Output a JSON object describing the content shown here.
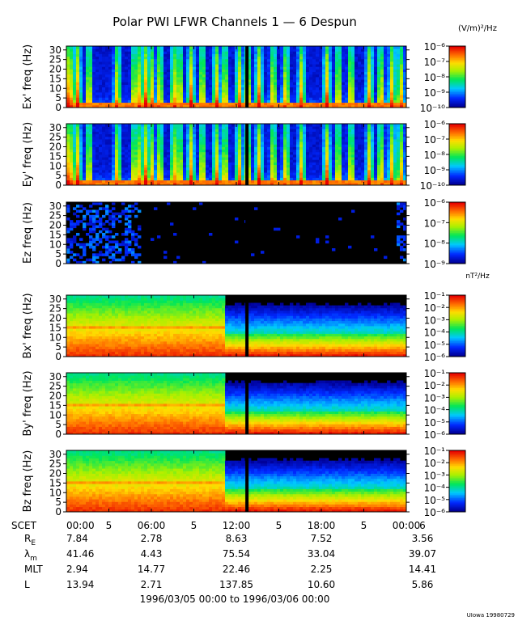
{
  "title": "Polar PWI LFWR Channels 1 — 6 Despun",
  "electric_units": "(V/m)²/Hz",
  "magnetic_units": "nT²/Hz",
  "credit": "UIowa 19980729",
  "date_range": "1996/03/05 00:00 to 1996/03/06 00:00",
  "time_axis": {
    "row_label": "SCET",
    "start_label": "00:00",
    "tick_labels": [
      "00:00",
      "5",
      "06:00",
      "5",
      "12:00",
      "5",
      "18:00",
      "5",
      "00:00",
      "6"
    ],
    "range_hours": [
      0,
      24
    ]
  },
  "ephemeris": {
    "columns_hours": [
      0,
      6,
      12,
      18,
      24
    ],
    "rows": [
      {
        "name": "R",
        "sub": "E",
        "values": [
          "7.84",
          "2.78",
          "8.63",
          "7.52",
          "3.56"
        ]
      },
      {
        "name": "λ",
        "sub": "m",
        "values": [
          "41.46",
          "4.43",
          "75.54",
          "33.04",
          "39.07"
        ]
      },
      {
        "name": "MLT",
        "sub": "",
        "values": [
          "2.94",
          "14.77",
          "22.46",
          "2.25",
          "14.41"
        ]
      },
      {
        "name": "L",
        "sub": "",
        "values": [
          "13.94",
          "2.71",
          "137.85",
          "10.60",
          "5.86"
        ]
      }
    ]
  },
  "chart_data": [
    {
      "type": "heatmap",
      "channel": "Ex'",
      "ylabel": "Ex' freq (Hz)",
      "ylim": [
        0,
        32
      ],
      "yticks": [
        0,
        5,
        10,
        15,
        20,
        25,
        30
      ],
      "xlim_hours": [
        0,
        24
      ],
      "colorbar": {
        "ticks": [
          {
            "exp": -6,
            "label": "10⁻⁶"
          },
          {
            "exp": -7,
            "label": "10⁻⁷"
          },
          {
            "exp": -8,
            "label": "10⁻⁸"
          },
          {
            "exp": -9,
            "label": "10⁻⁹"
          },
          {
            "exp": -10,
            "label": "10⁻¹⁰"
          }
        ]
      },
      "features": {
        "style": "bursts",
        "bursts_hours": [
          0.1,
          0.4,
          0.8,
          1.6,
          3.6,
          4.8,
          5.2,
          5.6,
          6.0,
          6.6,
          7.6,
          8.0,
          8.8,
          9.6,
          10.6,
          11.2,
          12.2,
          12.8,
          13.6,
          14.6,
          15.5,
          16.6,
          18.4,
          19.2,
          20.1,
          21.4,
          22.2,
          23.0,
          23.6
        ]
      }
    },
    {
      "type": "heatmap",
      "channel": "Ey'",
      "ylabel": "Ey' freq (Hz)",
      "ylim": [
        0,
        32
      ],
      "yticks": [
        0,
        5,
        10,
        15,
        20,
        25,
        30
      ],
      "xlim_hours": [
        0,
        24
      ],
      "colorbar": {
        "ticks": [
          {
            "exp": -6,
            "label": "10⁻⁶"
          },
          {
            "exp": -7,
            "label": "10⁻⁷"
          },
          {
            "exp": -8,
            "label": "10⁻⁸"
          },
          {
            "exp": -9,
            "label": "10⁻⁹"
          },
          {
            "exp": -10,
            "label": "10⁻¹⁰"
          }
        ]
      },
      "features": {
        "style": "bursts",
        "bursts_hours": [
          0.1,
          0.4,
          0.8,
          1.6,
          3.6,
          4.8,
          5.2,
          5.6,
          6.0,
          6.6,
          7.6,
          8.0,
          8.8,
          9.6,
          10.6,
          11.2,
          12.2,
          12.8,
          13.6,
          14.6,
          15.5,
          16.6,
          18.4,
          19.2,
          20.1,
          21.4,
          22.2,
          23.0,
          23.6
        ]
      }
    },
    {
      "type": "heatmap",
      "channel": "Ez",
      "ylabel": "Ez freq (Hz)",
      "ylim": [
        0,
        32
      ],
      "yticks": [
        0,
        5,
        10,
        15,
        20,
        25,
        30
      ],
      "xlim_hours": [
        0,
        24
      ],
      "colorbar": {
        "ticks": [
          {
            "exp": -6,
            "label": "10⁻⁶"
          },
          {
            "exp": -7,
            "label": "10⁻⁷"
          },
          {
            "exp": -8,
            "label": "10⁻⁸"
          },
          {
            "exp": -9,
            "label": "10⁻⁹"
          }
        ]
      },
      "features": {
        "style": "noise",
        "noise_hours": [
          0,
          5.2
        ],
        "late_noise_hours": [
          23.3,
          24
        ]
      }
    },
    {
      "type": "heatmap",
      "channel": "Bx'",
      "ylabel": "Bx' freq (Hz)",
      "ylim": [
        0,
        32
      ],
      "yticks": [
        0,
        5,
        10,
        15,
        20,
        25,
        30
      ],
      "xlim_hours": [
        0,
        24
      ],
      "colorbar": {
        "ticks": [
          {
            "exp": -1,
            "label": "10⁻¹"
          },
          {
            "exp": -2,
            "label": "10⁻²"
          },
          {
            "exp": -3,
            "label": "10⁻³"
          },
          {
            "exp": -4,
            "label": "10⁻⁴"
          },
          {
            "exp": -5,
            "label": "10⁻⁵"
          },
          {
            "exp": -6,
            "label": "10⁻⁶"
          }
        ]
      },
      "features": {
        "style": "magnetic",
        "step_hour": 11.3,
        "band_hz": [
          14.5,
          16.5
        ]
      }
    },
    {
      "type": "heatmap",
      "channel": "By'",
      "ylabel": "By' freq (Hz)",
      "ylim": [
        0,
        32
      ],
      "yticks": [
        0,
        5,
        10,
        15,
        20,
        25,
        30
      ],
      "xlim_hours": [
        0,
        24
      ],
      "colorbar": {
        "ticks": [
          {
            "exp": -1,
            "label": "10⁻¹"
          },
          {
            "exp": -2,
            "label": "10⁻²"
          },
          {
            "exp": -3,
            "label": "10⁻³"
          },
          {
            "exp": -4,
            "label": "10⁻⁴"
          },
          {
            "exp": -5,
            "label": "10⁻⁵"
          },
          {
            "exp": -6,
            "label": "10⁻⁶"
          }
        ]
      },
      "features": {
        "style": "magnetic",
        "step_hour": 11.3,
        "band_hz": [
          14.5,
          16.5
        ]
      }
    },
    {
      "type": "heatmap",
      "channel": "Bz",
      "ylabel": "Bz freq (Hz)",
      "ylim": [
        0,
        32
      ],
      "yticks": [
        0,
        5,
        10,
        15,
        20,
        25,
        30
      ],
      "xlim_hours": [
        0,
        24
      ],
      "colorbar": {
        "ticks": [
          {
            "exp": -1,
            "label": "10⁻¹"
          },
          {
            "exp": -2,
            "label": "10⁻²"
          },
          {
            "exp": -3,
            "label": "10⁻³"
          },
          {
            "exp": -4,
            "label": "10⁻⁴"
          },
          {
            "exp": -5,
            "label": "10⁻⁵"
          },
          {
            "exp": -6,
            "label": "10⁻⁶"
          }
        ]
      },
      "features": {
        "style": "magnetic",
        "step_hour": 11.3,
        "band_hz": [
          14.5,
          16.5
        ]
      }
    }
  ]
}
